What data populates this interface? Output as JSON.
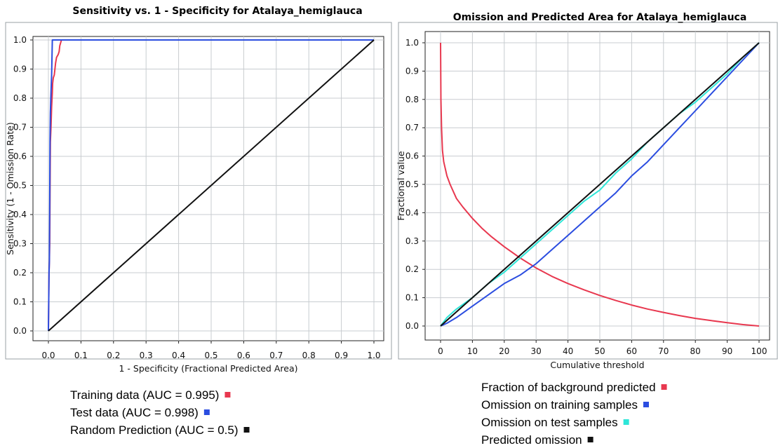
{
  "chart_data": [
    {
      "type": "line",
      "title": "Sensitivity vs. 1 - Specificity for Atalaya_hemiglauca",
      "xlabel": "1 - Specificity  (Fractional Predicted Area)",
      "ylabel": "Sensitivity  (1 - Omission Rate)",
      "xlim": [
        0,
        1
      ],
      "ylim": [
        0,
        1
      ],
      "xticks": [
        0,
        0.1,
        0.2,
        0.3,
        0.4,
        0.5,
        0.6,
        0.7,
        0.8,
        0.9,
        1.0
      ],
      "yticks": [
        0,
        0.1,
        0.2,
        0.3,
        0.4,
        0.5,
        0.6,
        0.7,
        0.8,
        0.9,
        1.0
      ],
      "xtick_labels": [
        "0.0",
        "0.1",
        "0.2",
        "0.3",
        "0.4",
        "0.5",
        "0.6",
        "0.7",
        "0.8",
        "0.9",
        "1.0"
      ],
      "ytick_labels": [
        "0.0",
        "0.1",
        "0.2",
        "0.3",
        "0.4",
        "0.5",
        "0.6",
        "0.7",
        "0.8",
        "0.9",
        "1.0"
      ],
      "grid": true,
      "legend_position": "bottom",
      "series": [
        {
          "name": "Training data (AUC = 0.995)",
          "color": "#e8384f",
          "x": [
            0,
            0.002,
            0.003,
            0.004,
            0.005,
            0.006,
            0.008,
            0.01,
            0.012,
            0.013,
            0.015,
            0.018,
            0.02,
            0.022,
            0.025,
            0.03,
            0.033,
            0.035,
            0.04,
            1.0
          ],
          "y": [
            0,
            0.2,
            0.24,
            0.3,
            0.47,
            0.65,
            0.7,
            0.77,
            0.82,
            0.85,
            0.87,
            0.88,
            0.9,
            0.92,
            0.94,
            0.95,
            0.96,
            0.98,
            1.0,
            1.0
          ]
        },
        {
          "name": "Test data (AUC = 0.998)",
          "color": "#2b4de0",
          "x": [
            0,
            0.002,
            0.003,
            0.004,
            0.005,
            0.006,
            0.008,
            0.01,
            0.012,
            1.0
          ],
          "y": [
            0,
            0.2,
            0.24,
            0.45,
            0.65,
            0.75,
            0.82,
            0.88,
            1.0,
            1.0
          ]
        },
        {
          "name": "Random Prediction (AUC = 0.5)",
          "color": "#111111",
          "x": [
            0,
            1
          ],
          "y": [
            0,
            1
          ]
        }
      ]
    },
    {
      "type": "line",
      "title": "Omission and Predicted Area for Atalaya_hemiglauca",
      "xlabel": "Cumulative threshold",
      "ylabel": "Fractional value",
      "xlim": [
        0,
        100
      ],
      "ylim": [
        0,
        1
      ],
      "xticks": [
        0,
        10,
        20,
        30,
        40,
        50,
        60,
        70,
        80,
        90,
        100
      ],
      "yticks": [
        0,
        0.1,
        0.2,
        0.3,
        0.4,
        0.5,
        0.6,
        0.7,
        0.8,
        0.9,
        1.0
      ],
      "xtick_labels": [
        "0",
        "10",
        "20",
        "30",
        "40",
        "50",
        "60",
        "70",
        "80",
        "90",
        "100"
      ],
      "ytick_labels": [
        "0.0",
        "0.1",
        "0.2",
        "0.3",
        "0.4",
        "0.5",
        "0.6",
        "0.7",
        "0.8",
        "0.9",
        "1.0"
      ],
      "grid": true,
      "legend_position": "bottom",
      "series": [
        {
          "name": "Fraction of background predicted",
          "color": "#e8384f",
          "x": [
            0,
            0.1,
            0.3,
            0.6,
            1,
            2,
            3,
            5,
            7,
            10,
            13,
            16,
            20,
            25,
            30,
            35,
            40,
            45,
            50,
            55,
            60,
            65,
            70,
            75,
            80,
            85,
            90,
            95,
            100
          ],
          "y": [
            1.0,
            0.8,
            0.7,
            0.62,
            0.58,
            0.53,
            0.5,
            0.45,
            0.42,
            0.38,
            0.345,
            0.315,
            0.28,
            0.24,
            0.205,
            0.175,
            0.15,
            0.128,
            0.108,
            0.09,
            0.074,
            0.06,
            0.048,
            0.037,
            0.027,
            0.019,
            0.012,
            0.005,
            0.0
          ]
        },
        {
          "name": "Omission on training samples",
          "color": "#2b4de0",
          "x": [
            0,
            2,
            5,
            10,
            15,
            20,
            25,
            30,
            35,
            40,
            45,
            50,
            55,
            60,
            65,
            70,
            75,
            80,
            85,
            90,
            95,
            100
          ],
          "y": [
            0,
            0.01,
            0.03,
            0.07,
            0.11,
            0.15,
            0.18,
            0.22,
            0.27,
            0.32,
            0.37,
            0.42,
            0.47,
            0.53,
            0.58,
            0.64,
            0.7,
            0.76,
            0.82,
            0.88,
            0.94,
            1.0
          ]
        },
        {
          "name": "Omission on test samples",
          "color": "#2ee6d8",
          "x": [
            0,
            2,
            5,
            10,
            15,
            20,
            25,
            30,
            35,
            40,
            45,
            50,
            55,
            60,
            65,
            70,
            75,
            80,
            85,
            90,
            95,
            100
          ],
          "y": [
            0,
            0.03,
            0.06,
            0.1,
            0.15,
            0.19,
            0.24,
            0.29,
            0.34,
            0.39,
            0.44,
            0.48,
            0.54,
            0.59,
            0.65,
            0.7,
            0.75,
            0.79,
            0.84,
            0.89,
            0.95,
            1.0
          ]
        },
        {
          "name": "Predicted omission",
          "color": "#111111",
          "x": [
            0,
            100
          ],
          "y": [
            0,
            1
          ]
        }
      ]
    }
  ]
}
